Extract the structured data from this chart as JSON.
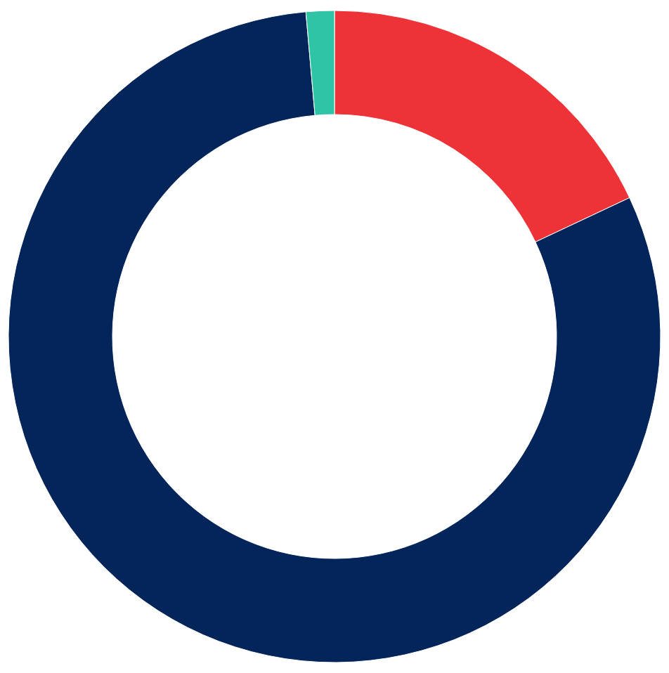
{
  "chart_data": {
    "type": "donut",
    "categories": [
      null,
      null,
      null
    ],
    "values": [
      18,
      80.6,
      1.4
    ],
    "colors": [
      "#ee3338",
      "#03255a",
      "#2ec4a5"
    ]
  }
}
